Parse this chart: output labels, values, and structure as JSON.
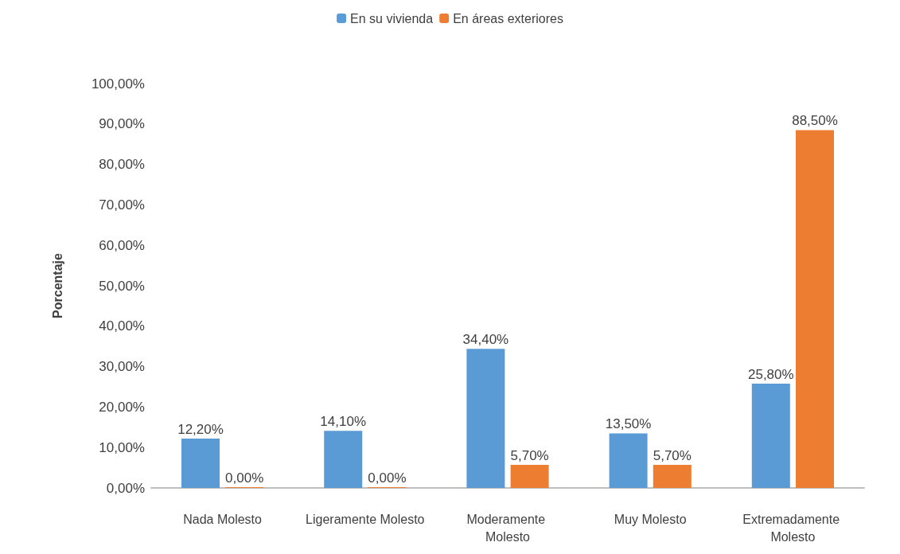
{
  "chart_data": {
    "type": "bar",
    "ylabel": "Porcentaje",
    "categories": [
      "Nada Molesto",
      "Ligeramente Molesto",
      "Moderamente Molesto",
      "Muy Molesto",
      "Extremadamente Molesto"
    ],
    "series": [
      {
        "name": "En su vivienda",
        "color": "#5b9bd5",
        "values": [
          12.2,
          14.1,
          34.4,
          13.5,
          25.8
        ],
        "value_labels": [
          "12,20%",
          "14,10%",
          "34,40%",
          "13,50%",
          "25,80%"
        ]
      },
      {
        "name": "En áreas exteriores",
        "color": "#ed7d31",
        "values": [
          0,
          0,
          5.7,
          5.7,
          88.5
        ],
        "value_labels": [
          "0,00%",
          "0,00%",
          "5,70%",
          "5,70%",
          "88,50%"
        ]
      }
    ],
    "ylim": [
      0,
      100
    ],
    "yticks": [
      {
        "value": 0,
        "label": "0,00%"
      },
      {
        "value": 10,
        "label": "10,00%"
      },
      {
        "value": 20,
        "label": "20,00%"
      },
      {
        "value": 30,
        "label": "30,00%"
      },
      {
        "value": 40,
        "label": "40,00%"
      },
      {
        "value": 50,
        "label": "50,00%"
      },
      {
        "value": 60,
        "label": "60,00%"
      },
      {
        "value": 70,
        "label": "70,00%"
      },
      {
        "value": 80,
        "label": "80,00%"
      },
      {
        "value": 90,
        "label": "90,00%"
      },
      {
        "value": 100,
        "label": "100,00%"
      }
    ],
    "legend": "top",
    "grid": false
  }
}
